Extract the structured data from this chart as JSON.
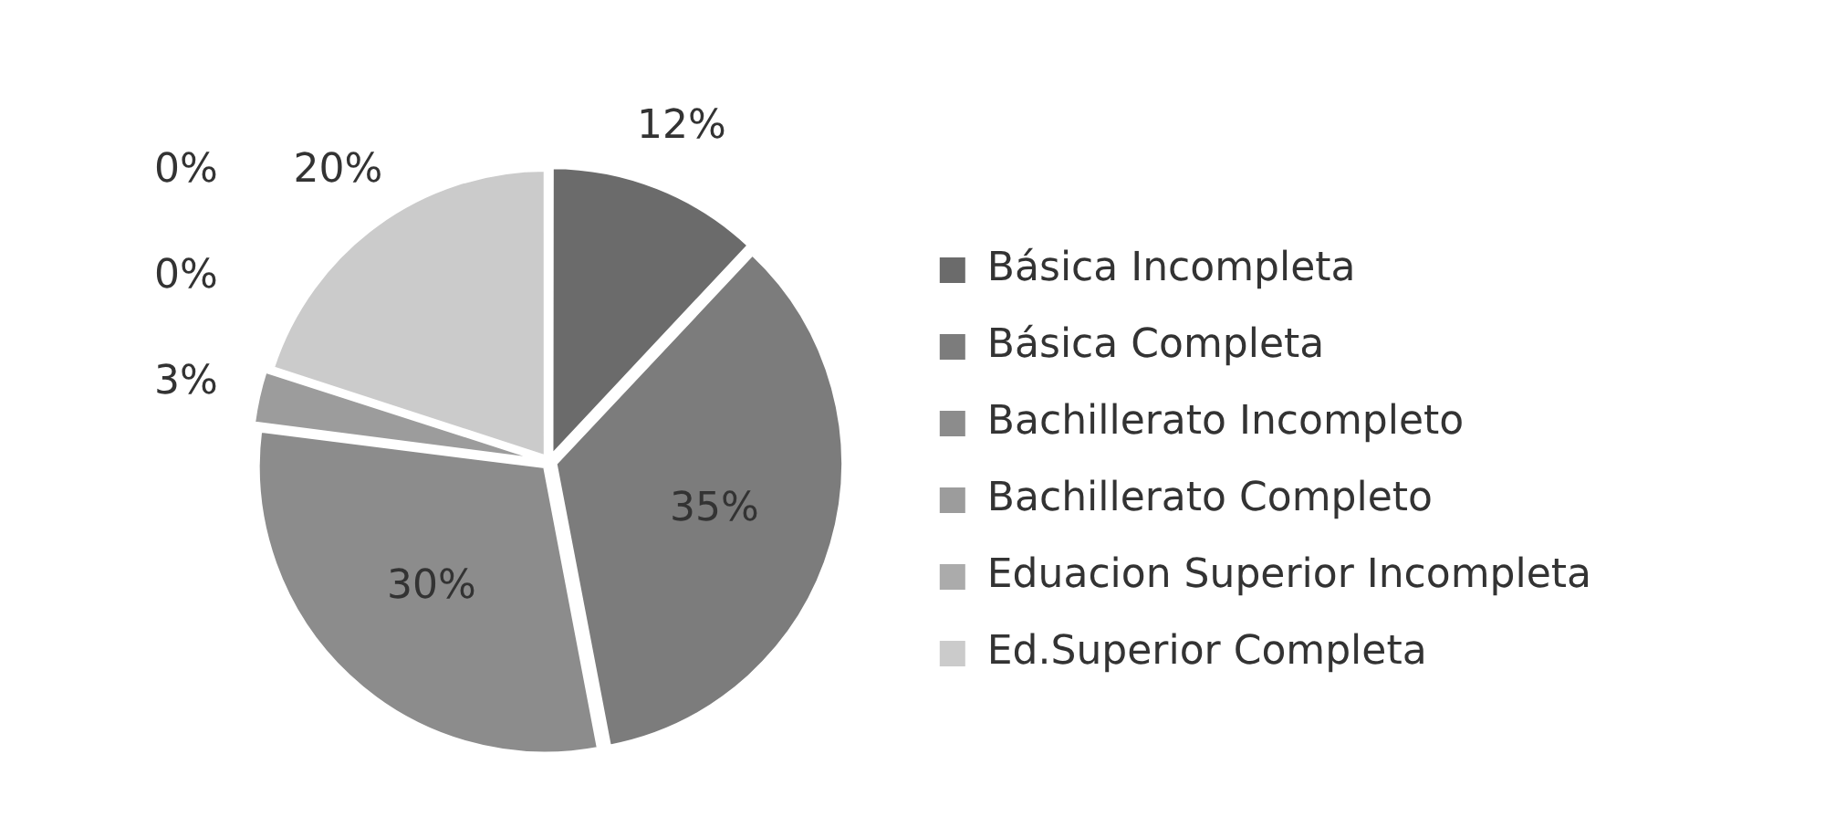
{
  "chart_data": {
    "type": "pie",
    "categories": [
      "Básica Incompleta",
      "Básica Completa",
      "Bachillerato Incompleto",
      "Bachillerato Completo",
      "Eduacion Superior Incompleta",
      null,
      "Ed.Superior Completa"
    ],
    "values": [
      12,
      35,
      30,
      3,
      0,
      0,
      20
    ],
    "colors": [
      "#6b6b6b",
      "#7c7c7c",
      "#8c8c8c",
      "#9c9c9c",
      "#ababab",
      "#bababa",
      "#cbcbcb"
    ],
    "value_labels": [
      "12%",
      "35%",
      "30%",
      "3%",
      "0%",
      "0%",
      "20%"
    ],
    "legend": "right"
  }
}
